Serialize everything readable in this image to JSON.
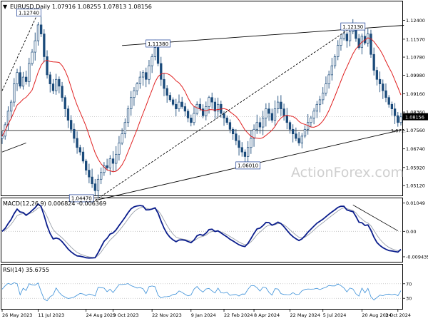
{
  "chart_data": [
    {
      "type": "candlestick",
      "panel": "price",
      "title": "EURUSD,Daily  1.07916 1.08255 1.07813 1.08156",
      "symbol_marker": "▼",
      "watermark": "ActionForex.com",
      "ylim": [
        1.0475,
        1.1273
      ],
      "y_ticks": [
        "1.12400",
        "1.11570",
        "1.10780",
        "1.09980",
        "1.09160",
        "1.08360",
        "1.07560",
        "1.06740",
        "1.05920",
        "1.05120"
      ],
      "y_tick_values": [
        1.124,
        1.1157,
        1.1078,
        1.0998,
        1.0916,
        1.0836,
        1.0756,
        1.0674,
        1.0592,
        1.0512
      ],
      "current_price": 1.08156,
      "current_price_label": "1.08156",
      "horizontal_line": 1.0755,
      "ma_label": "1.07…",
      "annotations": [
        {
          "label": "1.12740",
          "i": 12,
          "y": 1.1274
        },
        {
          "label": "1.11380",
          "i": 52,
          "y": 1.1138
        },
        {
          "label": "1.04470",
          "i": 31,
          "y": 1.0447
        },
        {
          "label": "1.06010",
          "i": 82,
          "y": 1.0601
        },
        {
          "label": "1.12130",
          "i": 117,
          "y": 1.1213
        }
      ],
      "trendlines": [
        {
          "name": "upper-channel",
          "style": "solid",
          "p1": {
            "i": 40,
            "y": 1.1129
          },
          "p2": {
            "i": 134,
            "y": 1.1218
          }
        },
        {
          "name": "lower-channel",
          "style": "solid",
          "p1": {
            "i": 31,
            "y": 1.0447
          },
          "p2": {
            "i": 134,
            "y": 1.076
          }
        },
        {
          "name": "rising-support",
          "style": "dashed",
          "p1": {
            "i": 31,
            "y": 1.0447
          },
          "p2": {
            "i": 117,
            "y": 1.1213
          }
        },
        {
          "name": "early-support",
          "style": "solid",
          "p1": {
            "i": 0,
            "y": 1.066
          },
          "p2": {
            "i": 8,
            "y": 1.07
          }
        },
        {
          "name": "early-rise",
          "style": "dashed",
          "p1": {
            "i": 0,
            "y": 1.093
          },
          "p2": {
            "i": 12,
            "y": 1.1274
          }
        }
      ],
      "closes": [
        1.073,
        1.078,
        1.084,
        1.088,
        1.096,
        1.101,
        1.095,
        1.099,
        1.097,
        1.105,
        1.11,
        1.115,
        1.122,
        1.118,
        1.108,
        1.1,
        1.096,
        1.093,
        1.098,
        1.095,
        1.09,
        1.085,
        1.08,
        1.076,
        1.072,
        1.068,
        1.066,
        1.062,
        1.058,
        1.055,
        1.052,
        1.049,
        1.054,
        1.057,
        1.06,
        1.059,
        1.063,
        1.061,
        1.065,
        1.07,
        1.074,
        1.079,
        1.085,
        1.09,
        1.093,
        1.096,
        1.099,
        1.101,
        1.098,
        1.104,
        1.108,
        1.112,
        1.105,
        1.098,
        1.094,
        1.091,
        1.089,
        1.087,
        1.085,
        1.088,
        1.086,
        1.084,
        1.081,
        1.079,
        1.083,
        1.087,
        1.085,
        1.082,
        1.086,
        1.09,
        1.088,
        1.084,
        1.087,
        1.083,
        1.081,
        1.079,
        1.076,
        1.074,
        1.071,
        1.068,
        1.066,
        1.064,
        1.068,
        1.072,
        1.076,
        1.079,
        1.077,
        1.081,
        1.085,
        1.083,
        1.08,
        1.085,
        1.088,
        1.085,
        1.082,
        1.079,
        1.076,
        1.074,
        1.072,
        1.07,
        1.073,
        1.076,
        1.079,
        1.081,
        1.084,
        1.087,
        1.089,
        1.092,
        1.096,
        1.1,
        1.104,
        1.108,
        1.113,
        1.116,
        1.118,
        1.115,
        1.119,
        1.121,
        1.116,
        1.112,
        1.117,
        1.114,
        1.118,
        1.109,
        1.102,
        1.098,
        1.096,
        1.093,
        1.09,
        1.087,
        1.085,
        1.082,
        1.079,
        1.0815
      ]
    },
    {
      "type": "line",
      "panel": "macd",
      "title": "MACD(12,26,9) 0.006824 -0.006369",
      "ylim": [
        -0.0105,
        0.0112
      ],
      "y_ticks": [
        "0.01049",
        "0.00",
        "-0.009435"
      ],
      "y_tick_values": [
        0.01049,
        0.0,
        -0.009435
      ],
      "zero_label": "0.00"
    },
    {
      "type": "line",
      "panel": "rsi",
      "title": "RSI(14) 35.6755",
      "ylim": [
        5,
        95
      ],
      "y_ticks": [
        "70",
        "30"
      ],
      "y_tick_values": [
        70,
        30
      ],
      "levels": [
        70,
        30
      ]
    }
  ],
  "x_axis": {
    "labels": [
      "26 May 2023",
      "11 Jul 2023",
      "24 Aug 2023",
      "9 Oct 2023",
      "22 Nov 2023",
      "9 Jan 2024",
      "22 Feb 2024",
      "8 Apr 2024",
      "22 May 2024",
      "5 Jul 2024",
      "20 Aug 2024",
      "3 Oct 2024"
    ],
    "label_index": [
      0,
      12,
      28,
      37,
      50,
      63,
      74,
      84,
      96,
      107,
      120,
      132
    ]
  },
  "colors": {
    "candle": "#1a4a7a",
    "ma": "#e02020",
    "macd": "#0a1d8c",
    "signal": "#9aa0aa",
    "rsi": "#3a8fd8",
    "grid": "#bdbdbd",
    "text": "#000000",
    "watermark": "#cfcfcf"
  }
}
